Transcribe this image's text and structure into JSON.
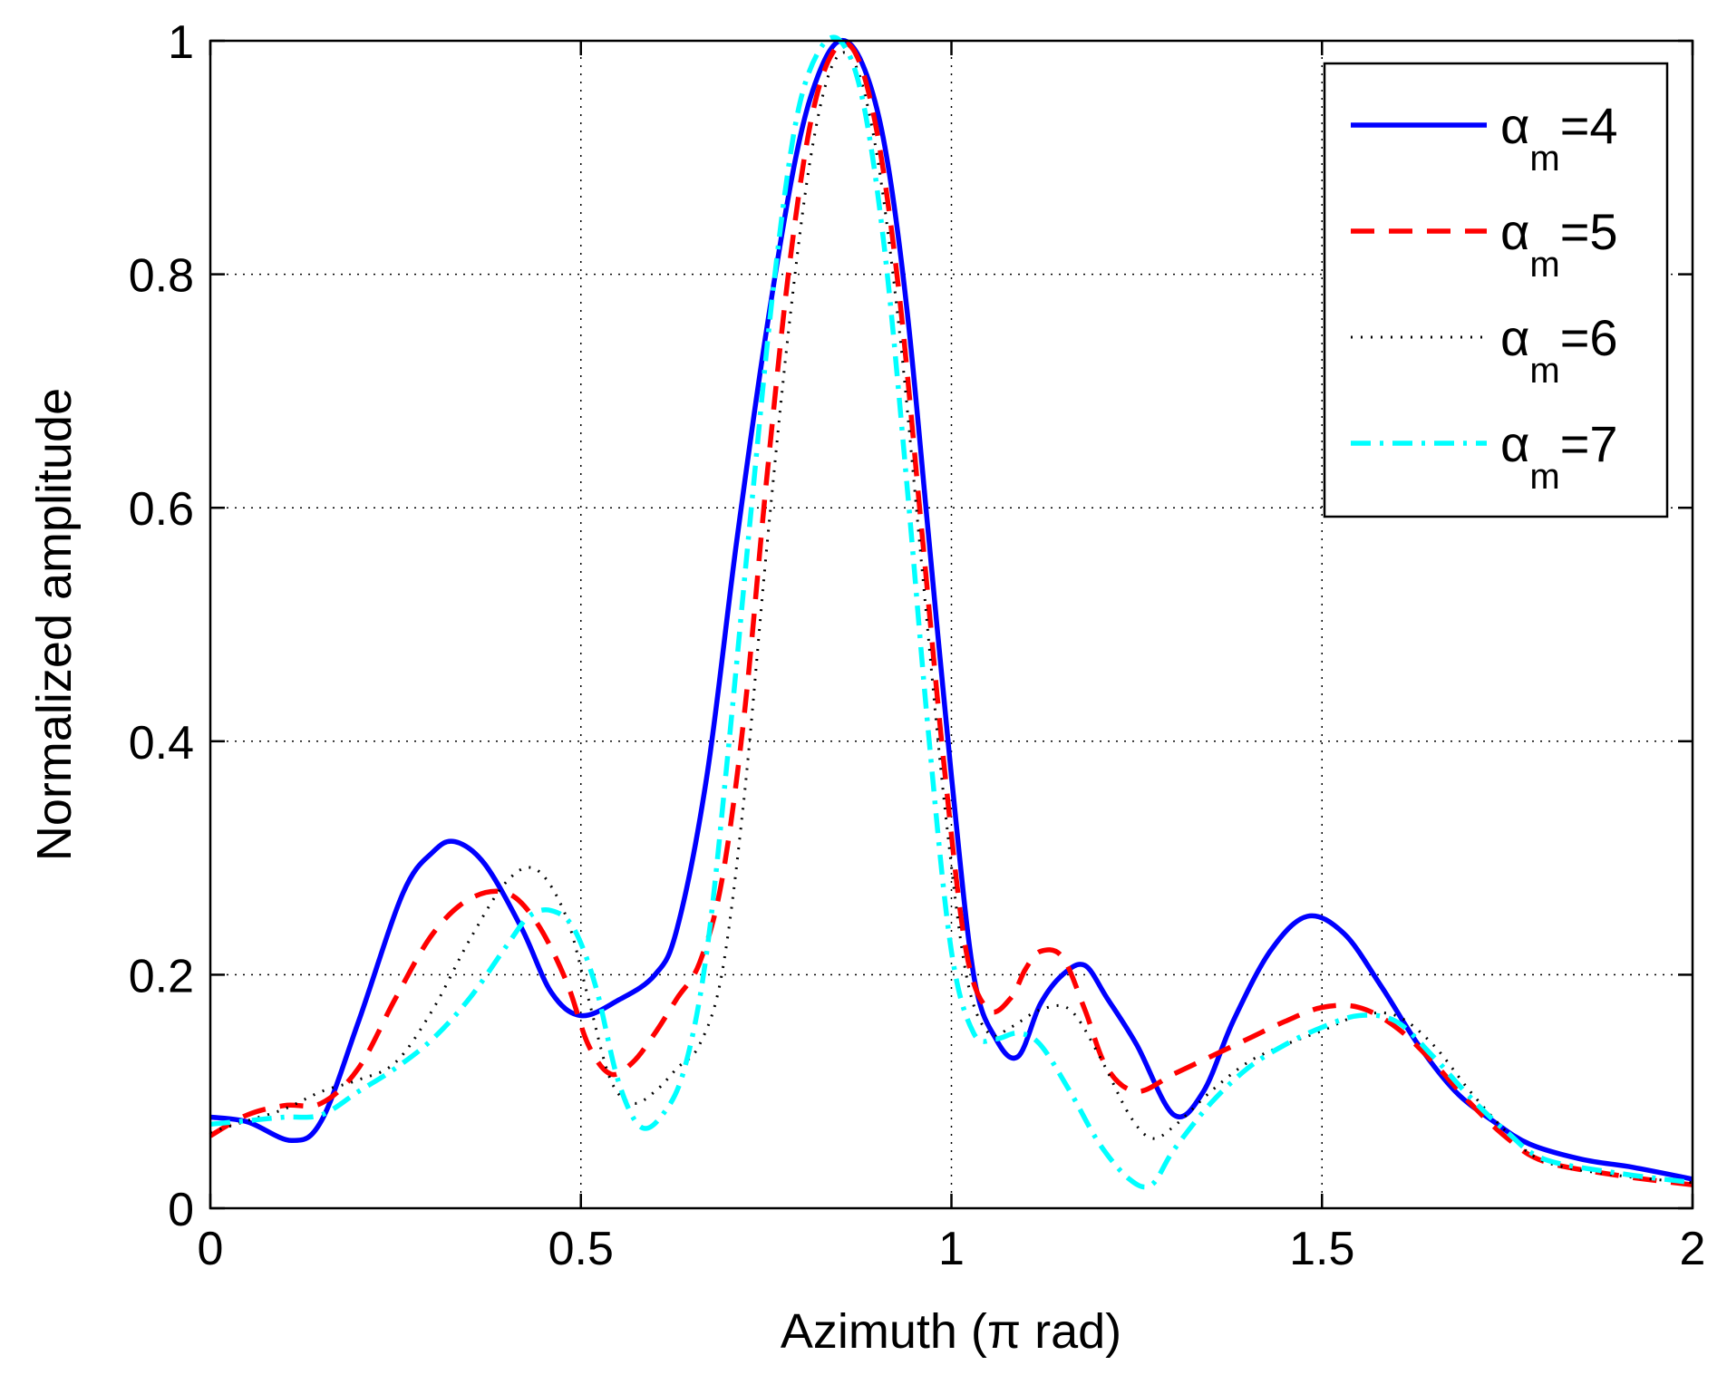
{
  "chart_data": {
    "type": "line",
    "title": "",
    "xlabel": "Azimuth (π rad)",
    "ylabel": "Normalized amplitude",
    "xlim": [
      0,
      2
    ],
    "ylim": [
      0,
      1
    ],
    "grid": true,
    "legend_position": "top-right",
    "xticks": [
      0,
      0.5,
      1,
      1.5,
      2
    ],
    "xtick_labels": [
      "0",
      "0.5",
      "1",
      "1.5",
      "2"
    ],
    "yticks": [
      0,
      0.2,
      0.4,
      0.6,
      0.8,
      1
    ],
    "ytick_labels": [
      "0",
      "0.2",
      "0.4",
      "0.6",
      "0.8",
      "1"
    ],
    "series": [
      {
        "name": "αm=4",
        "legend": {
          "symbol": "α",
          "sub": "m",
          "value": "=4"
        },
        "color": "#0000ff",
        "style": "solid",
        "x": [
          0,
          0.05,
          0.11,
          0.15,
          0.2,
          0.26,
          0.3,
          0.33,
          0.37,
          0.42,
          0.46,
          0.5,
          0.55,
          0.6,
          0.63,
          0.67,
          0.71,
          0.75,
          0.79,
          0.82,
          0.85,
          0.88,
          0.91,
          0.94,
          0.97,
          1.0,
          1.03,
          1.06,
          1.09,
          1.12,
          1.15,
          1.18,
          1.21,
          1.25,
          1.3,
          1.34,
          1.38,
          1.43,
          1.48,
          1.53,
          1.58,
          1.63,
          1.68,
          1.73,
          1.78,
          1.85,
          1.92,
          2.0
        ],
        "y": [
          0.078,
          0.074,
          0.058,
          0.075,
          0.16,
          0.27,
          0.305,
          0.314,
          0.295,
          0.24,
          0.185,
          0.165,
          0.178,
          0.2,
          0.24,
          0.37,
          0.57,
          0.75,
          0.9,
          0.97,
          1.0,
          0.98,
          0.91,
          0.77,
          0.57,
          0.37,
          0.2,
          0.145,
          0.13,
          0.175,
          0.2,
          0.208,
          0.18,
          0.14,
          0.08,
          0.1,
          0.16,
          0.22,
          0.25,
          0.235,
          0.19,
          0.14,
          0.1,
          0.075,
          0.055,
          0.042,
          0.035,
          0.025
        ]
      },
      {
        "name": "αm=5",
        "legend": {
          "symbol": "α",
          "sub": "m",
          "value": "=5"
        },
        "color": "#ff0000",
        "style": "dashed",
        "x": [
          0,
          0.05,
          0.1,
          0.15,
          0.2,
          0.25,
          0.3,
          0.35,
          0.4,
          0.44,
          0.48,
          0.51,
          0.54,
          0.57,
          0.6,
          0.63,
          0.66,
          0.69,
          0.72,
          0.75,
          0.78,
          0.81,
          0.84,
          0.87,
          0.9,
          0.93,
          0.96,
          0.99,
          1.02,
          1.05,
          1.08,
          1.1,
          1.12,
          1.15,
          1.18,
          1.21,
          1.25,
          1.3,
          1.35,
          1.4,
          1.45,
          1.5,
          1.55,
          1.6,
          1.65,
          1.7,
          1.75,
          1.8,
          1.9,
          2.0
        ],
        "y": [
          0.062,
          0.08,
          0.088,
          0.09,
          0.12,
          0.18,
          0.235,
          0.265,
          0.27,
          0.245,
          0.195,
          0.14,
          0.115,
          0.125,
          0.15,
          0.18,
          0.21,
          0.28,
          0.42,
          0.62,
          0.8,
          0.93,
          0.99,
          0.99,
          0.92,
          0.78,
          0.58,
          0.38,
          0.22,
          0.17,
          0.18,
          0.205,
          0.22,
          0.215,
          0.17,
          0.12,
          0.1,
          0.115,
          0.13,
          0.145,
          0.16,
          0.172,
          0.172,
          0.155,
          0.125,
          0.09,
          0.06,
          0.04,
          0.028,
          0.02
        ]
      },
      {
        "name": "αm=6",
        "legend": {
          "symbol": "α",
          "sub": "m",
          "value": "=6"
        },
        "color": "#000000",
        "style": "dotted",
        "x": [
          0,
          0.05,
          0.1,
          0.15,
          0.2,
          0.25,
          0.3,
          0.35,
          0.4,
          0.44,
          0.48,
          0.51,
          0.54,
          0.57,
          0.6,
          0.63,
          0.66,
          0.69,
          0.72,
          0.75,
          0.78,
          0.81,
          0.84,
          0.87,
          0.9,
          0.93,
          0.96,
          0.99,
          1.02,
          1.05,
          1.08,
          1.12,
          1.16,
          1.2,
          1.24,
          1.27,
          1.3,
          1.35,
          1.4,
          1.45,
          1.5,
          1.55,
          1.6,
          1.65,
          1.7,
          1.75,
          1.8,
          1.9,
          2.0
        ],
        "y": [
          0.065,
          0.075,
          0.085,
          0.1,
          0.11,
          0.125,
          0.17,
          0.23,
          0.28,
          0.29,
          0.25,
          0.18,
          0.11,
          0.09,
          0.1,
          0.12,
          0.14,
          0.2,
          0.35,
          0.56,
          0.75,
          0.9,
          0.98,
          0.98,
          0.9,
          0.75,
          0.55,
          0.35,
          0.2,
          0.15,
          0.155,
          0.17,
          0.17,
          0.13,
          0.08,
          0.06,
          0.07,
          0.1,
          0.125,
          0.14,
          0.152,
          0.165,
          0.165,
          0.14,
          0.1,
          0.065,
          0.04,
          0.028,
          0.022
        ]
      },
      {
        "name": "αm=7",
        "legend": {
          "symbol": "α",
          "sub": "m",
          "value": "=7"
        },
        "color": "#00ffff",
        "style": "dashdot",
        "x": [
          0,
          0.05,
          0.1,
          0.15,
          0.2,
          0.25,
          0.3,
          0.35,
          0.4,
          0.43,
          0.46,
          0.49,
          0.52,
          0.55,
          0.58,
          0.61,
          0.64,
          0.67,
          0.7,
          0.73,
          0.76,
          0.79,
          0.82,
          0.85,
          0.88,
          0.91,
          0.94,
          0.97,
          1.0,
          1.03,
          1.06,
          1.09,
          1.12,
          1.16,
          1.2,
          1.24,
          1.27,
          1.3,
          1.35,
          1.4,
          1.45,
          1.5,
          1.55,
          1.6,
          1.65,
          1.7,
          1.75,
          1.8,
          1.9,
          2.0
        ],
        "y": [
          0.072,
          0.075,
          0.078,
          0.08,
          0.1,
          0.12,
          0.145,
          0.18,
          0.225,
          0.25,
          0.255,
          0.24,
          0.19,
          0.11,
          0.07,
          0.08,
          0.12,
          0.22,
          0.4,
          0.6,
          0.79,
          0.93,
          0.99,
          1.0,
          0.95,
          0.82,
          0.62,
          0.4,
          0.22,
          0.15,
          0.145,
          0.15,
          0.14,
          0.1,
          0.055,
          0.025,
          0.02,
          0.05,
          0.09,
          0.12,
          0.14,
          0.155,
          0.165,
          0.16,
          0.13,
          0.095,
          0.065,
          0.042,
          0.03,
          0.022
        ]
      }
    ]
  }
}
